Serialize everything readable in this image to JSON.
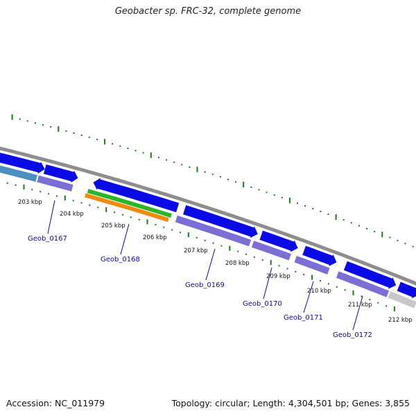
{
  "title": "Geobacter sp. FRC-32, complete genome",
  "footer": {
    "accession": "Accession: NC_011979",
    "summary": "Topology: circular; Length: 4,304,501 bp; Genes: 3,855"
  },
  "colors": {
    "cds": "#0a0ae6",
    "gene": "#7b6fd6",
    "rrna_green": "#2ab52a",
    "rrna_orange": "#f08a0a",
    "backbone": "#8d8d8d",
    "ticks": "#1a7a1a",
    "tail_cyan": "#4a8fc0",
    "tail_grey": "#c8c8c8",
    "label": "#0b0b8f"
  },
  "ruler": [
    {
      "label": "203 kbp"
    },
    {
      "label": "204 kbp"
    },
    {
      "label": "205 kbp"
    },
    {
      "label": "206 kbp"
    },
    {
      "label": "207 kbp"
    },
    {
      "label": "208 kbp"
    },
    {
      "label": "209 kbp"
    },
    {
      "label": "210 kbp"
    },
    {
      "label": "211 kbp"
    },
    {
      "label": "212 kbp"
    }
  ],
  "genes": [
    {
      "name": "Geob_0167"
    },
    {
      "name": "Geob_0168"
    },
    {
      "name": "Geob_0169"
    },
    {
      "name": "Geob_0170"
    },
    {
      "name": "Geob_0171"
    },
    {
      "name": "Geob_0172"
    }
  ]
}
